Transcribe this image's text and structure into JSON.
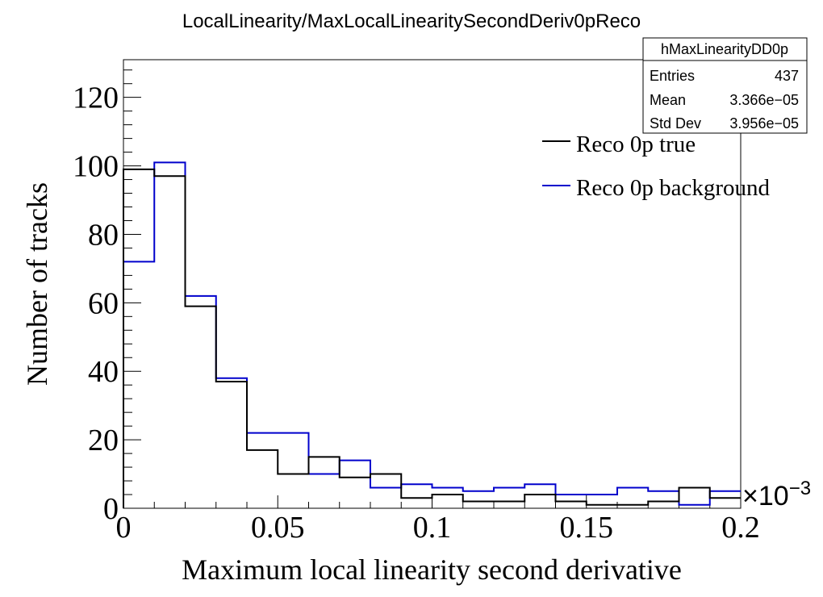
{
  "chart_data": {
    "type": "histogram",
    "title": "LocalLinearity/MaxLocalLinearitySecondDeriv0pReco",
    "xlabel": "Maximum local linearity second derivative",
    "ylabel": "Number of tracks",
    "x_multiplier": "×10",
    "x_multiplier_exp": "−3",
    "xlim": [
      0,
      0.2
    ],
    "ylim": [
      0,
      131
    ],
    "bin_edges": [
      0,
      0.01,
      0.02,
      0.03,
      0.04,
      0.05,
      0.06,
      0.07,
      0.08,
      0.09,
      0.1,
      0.11,
      0.12,
      0.13,
      0.14,
      0.15,
      0.16,
      0.17,
      0.18,
      0.19,
      0.2
    ],
    "x_ticks": [
      {
        "value": 0,
        "label": "0"
      },
      {
        "value": 0.05,
        "label": "0.05"
      },
      {
        "value": 0.1,
        "label": "0.1"
      },
      {
        "value": 0.15,
        "label": "0.15"
      },
      {
        "value": 0.2,
        "label": "0.2"
      }
    ],
    "y_ticks": [
      {
        "value": 0,
        "label": "0"
      },
      {
        "value": 20,
        "label": "20"
      },
      {
        "value": 40,
        "label": "40"
      },
      {
        "value": 60,
        "label": "60"
      },
      {
        "value": 80,
        "label": "80"
      },
      {
        "value": 100,
        "label": "100"
      },
      {
        "value": 120,
        "label": "120"
      }
    ],
    "series": [
      {
        "name": "Reco 0p true",
        "color": "#000000",
        "values": [
          99,
          97,
          59,
          37,
          17,
          10,
          15,
          9,
          10,
          3,
          4,
          2,
          2,
          4,
          2,
          1,
          1,
          2,
          6,
          3
        ]
      },
      {
        "name": "Reco 0p background",
        "color": "#0000cc",
        "values": [
          72,
          101,
          62,
          38,
          22,
          22,
          10,
          14,
          6,
          7,
          6,
          5,
          6,
          7,
          4,
          4,
          6,
          5,
          1,
          5
        ]
      }
    ],
    "legend": "top-right",
    "grid": false
  },
  "stats_box": {
    "name": "hMaxLinearityDD0p",
    "rows": [
      {
        "label": "Entries",
        "value": "437"
      },
      {
        "label": "Mean",
        "value": "3.366e−05"
      },
      {
        "label": "Std Dev",
        "value": "3.956e−05"
      }
    ]
  }
}
